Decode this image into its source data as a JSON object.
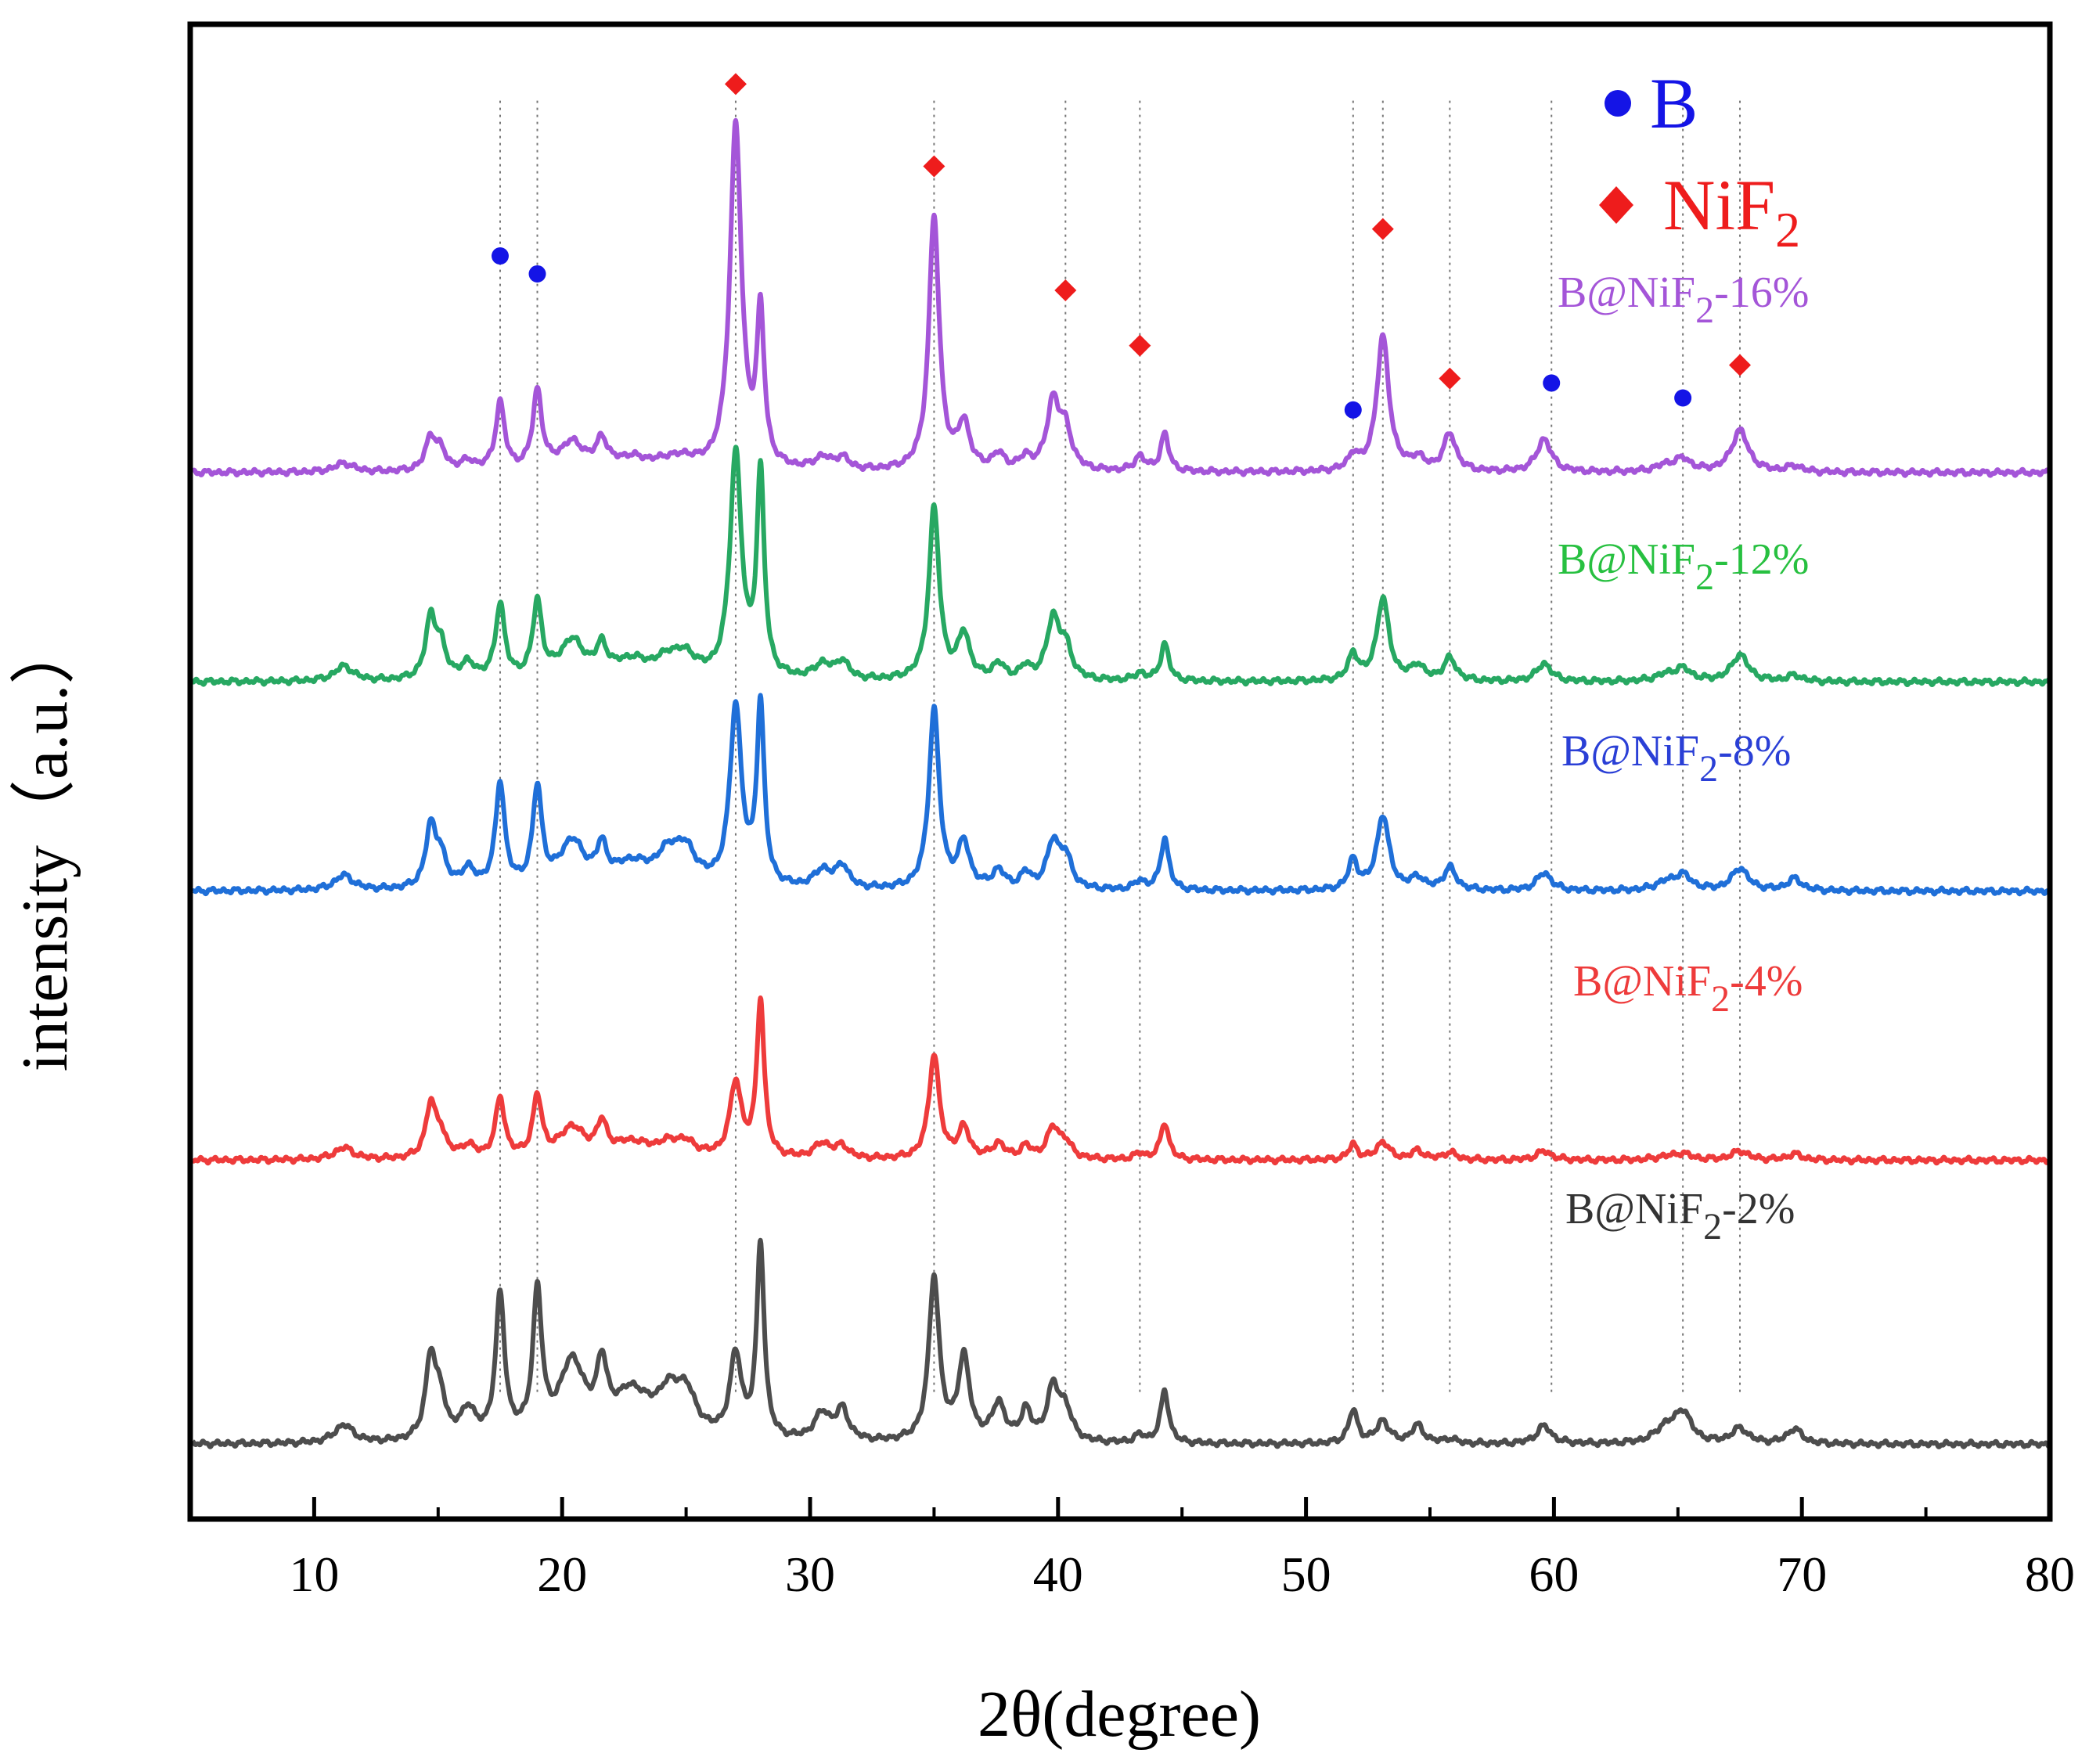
{
  "chart_data": {
    "type": "line",
    "title": "",
    "xlabel": "2θ(degree)",
    "ylabel": "intensity（a.u.）",
    "xlim": [
      5,
      80
    ],
    "xticks": [
      10,
      20,
      30,
      40,
      50,
      60,
      70,
      80
    ],
    "yticks": [],
    "grid": false,
    "baselines": [
      0.05,
      0.24,
      0.42,
      0.56,
      0.7
    ],
    "peaks": [
      {
        "x": 11.2,
        "w": 0.45
      },
      {
        "x": 14.7,
        "w": 0.25
      },
      {
        "x": 15.1,
        "w": 0.25
      },
      {
        "x": 16.2,
        "w": 0.35
      },
      {
        "x": 17.5,
        "w": 0.22
      },
      {
        "x": 19.0,
        "w": 0.22
      },
      {
        "x": 20.4,
        "w": 0.6
      },
      {
        "x": 21.6,
        "w": 0.25
      },
      {
        "x": 22.8,
        "w": 0.9
      },
      {
        "x": 24.3,
        "w": 0.6
      },
      {
        "x": 25.0,
        "w": 0.5
      },
      {
        "x": 27.0,
        "w": 0.28
      },
      {
        "x": 28.0,
        "w": 0.18
      },
      {
        "x": 30.5,
        "w": 0.4
      },
      {
        "x": 31.3,
        "w": 0.3
      },
      {
        "x": 35.0,
        "w": 0.25
      },
      {
        "x": 36.2,
        "w": 0.28
      },
      {
        "x": 37.6,
        "w": 0.3
      },
      {
        "x": 38.7,
        "w": 0.25
      },
      {
        "x": 39.8,
        "w": 0.3
      },
      {
        "x": 40.3,
        "w": 0.3
      },
      {
        "x": 43.3,
        "w": 0.25
      },
      {
        "x": 44.3,
        "w": 0.2
      },
      {
        "x": 51.9,
        "w": 0.22
      },
      {
        "x": 53.1,
        "w": 0.3
      },
      {
        "x": 54.5,
        "w": 0.3
      },
      {
        "x": 55.8,
        "w": 0.3
      },
      {
        "x": 59.6,
        "w": 0.35
      },
      {
        "x": 64.5,
        "w": 0.5
      },
      {
        "x": 65.2,
        "w": 0.4
      },
      {
        "x": 67.5,
        "w": 0.4
      },
      {
        "x": 69.7,
        "w": 0.35
      }
    ],
    "series": [
      {
        "name": "B@NiF2-2%",
        "color": "#4d4d4d",
        "amps": [
          0.012,
          0.055,
          0.025,
          0.02,
          0.095,
          0.095,
          0.05,
          0.04,
          0.03,
          0.025,
          0.025,
          0.055,
          0.13,
          0.018,
          0.02,
          0.11,
          0.055,
          0.025,
          0.02,
          0.035,
          0.02,
          0.005,
          0.035,
          0.022,
          0.015,
          0.012,
          0.003,
          0.012,
          0.01,
          0.02,
          0.01,
          0.01
        ]
      },
      {
        "name": "B@NiF2-4%",
        "color": "#ee3b3b",
        "amps": [
          0.008,
          0.035,
          0.015,
          0.008,
          0.04,
          0.04,
          0.02,
          0.02,
          0.01,
          0.008,
          0.008,
          0.05,
          0.105,
          0.01,
          0.008,
          0.07,
          0.02,
          0.01,
          0.008,
          0.02,
          0.01,
          0.004,
          0.025,
          0.01,
          0.012,
          0.006,
          0.005,
          0.006,
          0.002,
          0.004,
          0.006,
          0.004
        ]
      },
      {
        "name": "B@NiF2-8%",
        "color": "#1f6fd8",
        "amps": [
          0.01,
          0.04,
          0.02,
          0.012,
          0.07,
          0.065,
          0.03,
          0.022,
          0.015,
          0.02,
          0.02,
          0.12,
          0.12,
          0.012,
          0.015,
          0.12,
          0.03,
          0.012,
          0.01,
          0.03,
          0.02,
          0.006,
          0.035,
          0.02,
          0.05,
          0.008,
          0.015,
          0.012,
          0.005,
          0.01,
          0.015,
          0.008
        ]
      },
      {
        "name": "B@NiF2-12%",
        "color": "#27a862",
        "amps": [
          0.01,
          0.04,
          0.02,
          0.01,
          0.05,
          0.05,
          0.025,
          0.018,
          0.012,
          0.012,
          0.012,
          0.15,
          0.135,
          0.01,
          0.012,
          0.115,
          0.03,
          0.01,
          0.008,
          0.04,
          0.02,
          0.005,
          0.025,
          0.018,
          0.055,
          0.01,
          0.015,
          0.012,
          0.004,
          0.008,
          0.018,
          0.004
        ]
      },
      {
        "name": "B@NiF2-16%",
        "color": "#a455d8",
        "amps": [
          0.006,
          0.022,
          0.012,
          0.006,
          0.045,
          0.052,
          0.018,
          0.018,
          0.008,
          0.005,
          0.005,
          0.23,
          0.1,
          0.008,
          0.008,
          0.17,
          0.03,
          0.01,
          0.008,
          0.045,
          0.025,
          0.01,
          0.025,
          0.01,
          0.09,
          0.008,
          0.025,
          0.022,
          0.004,
          0.008,
          0.028,
          0.004
        ]
      }
    ],
    "phase_markers": [
      {
        "phase": "B",
        "x": 17.5,
        "y": 0.845
      },
      {
        "phase": "B",
        "x": 19.0,
        "y": 0.833
      },
      {
        "phase": "NiF2",
        "x": 27.0,
        "y": 0.96
      },
      {
        "phase": "NiF2",
        "x": 35.0,
        "y": 0.905
      },
      {
        "phase": "NiF2",
        "x": 40.3,
        "y": 0.822
      },
      {
        "phase": "NiF2",
        "x": 43.3,
        "y": 0.785
      },
      {
        "phase": "B",
        "x": 51.9,
        "y": 0.742
      },
      {
        "phase": "NiF2",
        "x": 53.1,
        "y": 0.863
      },
      {
        "phase": "NiF2",
        "x": 55.8,
        "y": 0.763
      },
      {
        "phase": "B",
        "x": 59.9,
        "y": 0.76
      },
      {
        "phase": "B",
        "x": 65.2,
        "y": 0.75
      },
      {
        "phase": "NiF2",
        "x": 67.5,
        "y": 0.772
      }
    ],
    "reference_lines": [
      17.5,
      19.0,
      27.0,
      35.0,
      40.3,
      43.3,
      51.9,
      53.1,
      55.8,
      59.9,
      65.2,
      67.5
    ],
    "legend": [
      {
        "marker": "circle",
        "color": "#1414e6",
        "label": "B"
      },
      {
        "marker": "diamond",
        "color": "#ee1c1c",
        "label": "NiF",
        "subscript": "2"
      }
    ],
    "series_labels": [
      {
        "base": "B@NiF",
        "sub": "2",
        "suffix": "-16%",
        "color": "#a455d8"
      },
      {
        "base": "B@NiF",
        "sub": "2",
        "suffix": "-12%",
        "color": "#27c040"
      },
      {
        "base": "B@NiF",
        "sub": "2",
        "suffix": "-8%",
        "color": "#2a3fd6"
      },
      {
        "base": "B@NiF",
        "sub": "2",
        "suffix": "-4%",
        "color": "#ee3b3b"
      },
      {
        "base": "B@NiF",
        "sub": "2",
        "suffix": "-2%",
        "color": "#333333"
      }
    ]
  }
}
